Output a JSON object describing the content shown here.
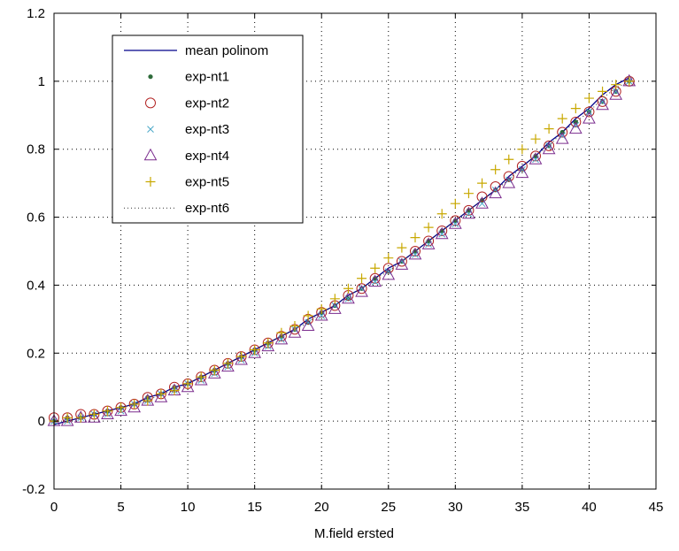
{
  "chart_data": {
    "type": "line",
    "title": "",
    "xlabel": "M.field ersted",
    "ylabel": "",
    "xlim": [
      0,
      45
    ],
    "ylim": [
      -0.2,
      1.2
    ],
    "xticks": [
      "0",
      "5",
      "10",
      "15",
      "20",
      "25",
      "30",
      "35",
      "40",
      "45"
    ],
    "yticks": [
      "-0.2",
      "0",
      "0.2",
      "0.4",
      "0.6",
      "0.8",
      "1",
      "1.2"
    ],
    "grid": true,
    "legend_position": "top-left",
    "x": [
      0,
      1,
      2,
      3,
      4,
      5,
      6,
      7,
      8,
      9,
      10,
      11,
      12,
      13,
      14,
      15,
      16,
      17,
      18,
      19,
      20,
      21,
      22,
      23,
      24,
      25,
      26,
      27,
      28,
      29,
      30,
      31,
      32,
      33,
      34,
      35,
      36,
      37,
      38,
      39,
      40,
      41,
      42,
      43
    ],
    "series": [
      {
        "name": "mean polinom",
        "marker": "line",
        "color": "#00008b",
        "values": [
          -0.01,
          0.0,
          0.01,
          0.02,
          0.03,
          0.04,
          0.05,
          0.07,
          0.08,
          0.1,
          0.11,
          0.13,
          0.15,
          0.17,
          0.19,
          0.21,
          0.23,
          0.25,
          0.27,
          0.3,
          0.32,
          0.34,
          0.37,
          0.39,
          0.42,
          0.45,
          0.47,
          0.5,
          0.53,
          0.56,
          0.59,
          0.62,
          0.65,
          0.68,
          0.72,
          0.75,
          0.78,
          0.82,
          0.85,
          0.89,
          0.92,
          0.96,
          0.99,
          1.01
        ]
      },
      {
        "name": "exp-nt1",
        "marker": "dot",
        "color": "#2e6b3a",
        "values": [
          0.0,
          0.01,
          0.01,
          0.02,
          0.03,
          0.04,
          0.05,
          0.07,
          0.08,
          0.1,
          0.11,
          0.13,
          0.15,
          0.17,
          0.19,
          0.21,
          0.23,
          0.25,
          0.27,
          0.29,
          0.32,
          0.34,
          0.36,
          0.39,
          0.42,
          0.44,
          0.47,
          0.5,
          0.53,
          0.56,
          0.59,
          0.62,
          0.65,
          0.68,
          0.71,
          0.74,
          0.78,
          0.81,
          0.85,
          0.88,
          0.91,
          0.94,
          0.97,
          1.0
        ]
      },
      {
        "name": "exp-nt2",
        "marker": "circle",
        "color": "#b22222",
        "values": [
          0.01,
          0.01,
          0.02,
          0.02,
          0.03,
          0.04,
          0.05,
          0.07,
          0.08,
          0.1,
          0.11,
          0.13,
          0.15,
          0.17,
          0.19,
          0.21,
          0.23,
          0.25,
          0.27,
          0.3,
          0.32,
          0.34,
          0.37,
          0.39,
          0.42,
          0.45,
          0.47,
          0.5,
          0.53,
          0.56,
          0.59,
          0.62,
          0.66,
          0.69,
          0.72,
          0.75,
          0.78,
          0.81,
          0.85,
          0.88,
          0.91,
          0.94,
          0.97,
          1.0
        ]
      },
      {
        "name": "exp-nt3",
        "marker": "x",
        "color": "#4aa8c8",
        "values": [
          0.0,
          0.0,
          0.01,
          0.02,
          0.02,
          0.03,
          0.05,
          0.06,
          0.08,
          0.09,
          0.11,
          0.12,
          0.14,
          0.16,
          0.18,
          0.2,
          0.22,
          0.24,
          0.27,
          0.29,
          0.31,
          0.34,
          0.36,
          0.39,
          0.41,
          0.44,
          0.47,
          0.49,
          0.52,
          0.55,
          0.58,
          0.61,
          0.64,
          0.68,
          0.71,
          0.74,
          0.77,
          0.81,
          0.84,
          0.87,
          0.91,
          0.94,
          0.97,
          1.0
        ]
      },
      {
        "name": "exp-nt4",
        "marker": "triangle",
        "color": "#7b2d8e",
        "values": [
          0.0,
          0.0,
          0.01,
          0.01,
          0.02,
          0.03,
          0.04,
          0.06,
          0.07,
          0.09,
          0.1,
          0.12,
          0.14,
          0.16,
          0.18,
          0.2,
          0.22,
          0.24,
          0.26,
          0.28,
          0.31,
          0.33,
          0.36,
          0.38,
          0.41,
          0.43,
          0.46,
          0.49,
          0.52,
          0.55,
          0.58,
          0.61,
          0.64,
          0.67,
          0.7,
          0.73,
          0.77,
          0.8,
          0.83,
          0.86,
          0.89,
          0.93,
          0.96,
          1.0
        ]
      },
      {
        "name": "exp-nt5",
        "marker": "plus",
        "color": "#c8a800",
        "values": [
          0.0,
          0.01,
          0.01,
          0.02,
          0.03,
          0.04,
          0.05,
          0.06,
          0.08,
          0.09,
          0.11,
          0.13,
          0.15,
          0.17,
          0.19,
          0.21,
          0.23,
          0.26,
          0.28,
          0.31,
          0.33,
          0.36,
          0.39,
          0.42,
          0.45,
          0.48,
          0.51,
          0.54,
          0.57,
          0.61,
          0.64,
          0.67,
          0.7,
          0.74,
          0.77,
          0.8,
          0.83,
          0.86,
          0.89,
          0.92,
          0.95,
          0.97,
          0.99,
          1.0
        ]
      },
      {
        "name": "exp-nt6",
        "marker": "dotted-line",
        "color": "#333333",
        "values": [
          0.0,
          0.0,
          0.01,
          0.02,
          0.03,
          0.04,
          0.05,
          0.06,
          0.08,
          0.09,
          0.11,
          0.13,
          0.15,
          0.17,
          0.19,
          0.21,
          0.23,
          0.25,
          0.27,
          0.29,
          0.32,
          0.34,
          0.37,
          0.39,
          0.42,
          0.44,
          0.47,
          0.5,
          0.53,
          0.56,
          0.59,
          0.62,
          0.65,
          0.68,
          0.71,
          0.75,
          0.78,
          0.81,
          0.85,
          0.88,
          0.91,
          0.95,
          0.98,
          1.0
        ]
      }
    ]
  }
}
